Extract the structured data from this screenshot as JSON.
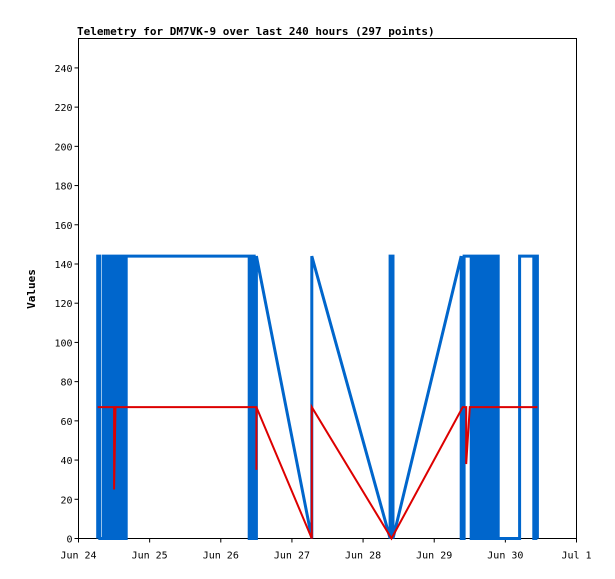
{
  "chart_data": {
    "type": "line",
    "title": "Telemetry for DM7VK-9 over last 240 hours (297 points)",
    "xlabel": "",
    "ylabel": "Values",
    "x_ticks": [
      "Jun 24",
      "Jun 25",
      "Jun 26",
      "Jun 27",
      "Jun 28",
      "Jun 29",
      "Jun 30",
      "Jul 1"
    ],
    "xlim": [
      0,
      7
    ],
    "y_ticks": [
      0,
      20,
      40,
      60,
      80,
      100,
      120,
      140,
      160,
      180,
      200,
      220,
      240
    ],
    "ylim": [
      0,
      255
    ],
    "grid": false,
    "legend": "none",
    "series": [
      {
        "color": "#0066cc",
        "points": [
          [
            0.27,
            0
          ],
          [
            0.27,
            144
          ],
          [
            0.3,
            144
          ],
          [
            0.3,
            0
          ],
          [
            0.35,
            0
          ],
          [
            0.35,
            144
          ],
          [
            0.38,
            144
          ],
          [
            0.38,
            0
          ],
          [
            0.41,
            0
          ],
          [
            0.41,
            144
          ],
          [
            0.44,
            144
          ],
          [
            0.44,
            0
          ],
          [
            0.47,
            0
          ],
          [
            0.47,
            144
          ],
          [
            0.5,
            144
          ],
          [
            0.5,
            0
          ],
          [
            0.52,
            0
          ],
          [
            0.52,
            144
          ],
          [
            0.55,
            144
          ],
          [
            0.55,
            0
          ],
          [
            0.57,
            0
          ],
          [
            0.57,
            144
          ],
          [
            0.6,
            144
          ],
          [
            0.6,
            0
          ],
          [
            0.62,
            0
          ],
          [
            0.62,
            144
          ],
          [
            0.65,
            144
          ],
          [
            0.65,
            0
          ],
          [
            0.67,
            0
          ],
          [
            0.67,
            144
          ],
          [
            2.4,
            144
          ],
          [
            2.4,
            0
          ],
          [
            2.43,
            0
          ],
          [
            2.43,
            144
          ],
          [
            2.47,
            144
          ],
          [
            2.47,
            0
          ],
          [
            2.5,
            0
          ],
          [
            2.5,
            144
          ],
          [
            3.28,
            0
          ],
          [
            3.28,
            144
          ],
          [
            4.38,
            0
          ],
          [
            4.38,
            144
          ],
          [
            4.42,
            144
          ],
          [
            4.42,
            0
          ],
          [
            5.38,
            144
          ],
          [
            5.38,
            0
          ],
          [
            5.42,
            0
          ],
          [
            5.42,
            144
          ],
          [
            5.52,
            144
          ],
          [
            5.52,
            0
          ],
          [
            5.55,
            0
          ],
          [
            5.55,
            144
          ],
          [
            5.58,
            144
          ],
          [
            5.58,
            0
          ],
          [
            5.62,
            0
          ],
          [
            5.62,
            144
          ],
          [
            5.65,
            144
          ],
          [
            5.65,
            0
          ],
          [
            5.68,
            0
          ],
          [
            5.68,
            144
          ],
          [
            5.71,
            144
          ],
          [
            5.71,
            0
          ],
          [
            5.74,
            0
          ],
          [
            5.74,
            144
          ],
          [
            5.77,
            144
          ],
          [
            5.77,
            0
          ],
          [
            5.8,
            0
          ],
          [
            5.8,
            144
          ],
          [
            5.83,
            144
          ],
          [
            5.83,
            0
          ],
          [
            5.86,
            0
          ],
          [
            5.86,
            144
          ],
          [
            5.9,
            144
          ],
          [
            5.9,
            0
          ],
          [
            6.2,
            0
          ],
          [
            6.2,
            144
          ],
          [
            6.4,
            144
          ],
          [
            6.4,
            0
          ],
          [
            6.43,
            0
          ],
          [
            6.43,
            144
          ],
          [
            6.45,
            144
          ],
          [
            6.45,
            0
          ]
        ]
      },
      {
        "color": "#dd0000",
        "points": [
          [
            0.27,
            67
          ],
          [
            2.5,
            67
          ],
          [
            2.5,
            35
          ],
          [
            2.5,
            67
          ],
          [
            3.28,
            0
          ],
          [
            3.28,
            67
          ],
          [
            4.4,
            0
          ],
          [
            5.4,
            67
          ],
          [
            5.45,
            67
          ],
          [
            5.45,
            38
          ],
          [
            5.5,
            67
          ],
          [
            6.35,
            67
          ],
          [
            6.45,
            67
          ]
        ]
      },
      {
        "color": "#dd0000",
        "points": [
          [
            0.5,
            67
          ],
          [
            0.5,
            25
          ],
          [
            0.52,
            67
          ]
        ]
      }
    ]
  }
}
